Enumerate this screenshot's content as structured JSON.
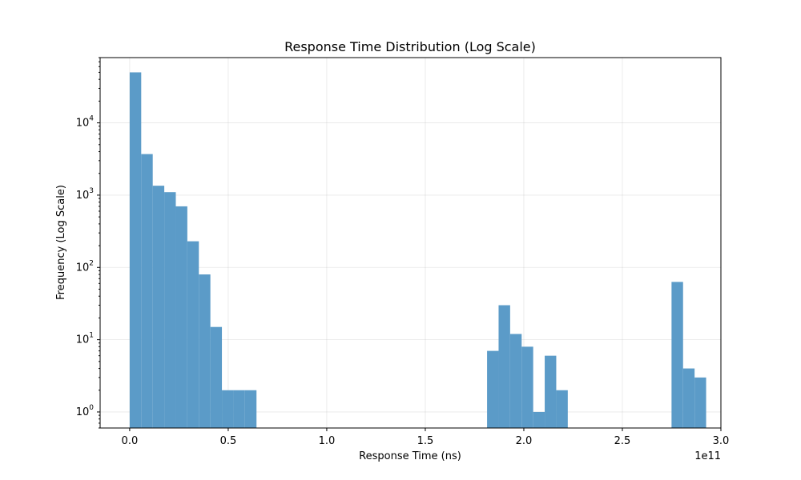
{
  "chart_data": {
    "type": "bar",
    "title": "Response Time Distribution (Log Scale)",
    "xlabel": "Response Time (ns)",
    "ylabel": "Frequency (Log Scale)",
    "x_offset_label": "1e11",
    "x_scale": 100000000000.0,
    "xlim": [
      -15000000000.0,
      300000000000.0
    ],
    "ylim": [
      0.6,
      80000
    ],
    "y_scale": "log",
    "grid": true,
    "color": "#5b9bc8",
    "x_ticks": [
      {
        "value": 0.0,
        "label": "0.0"
      },
      {
        "value": 50000000000.0,
        "label": "0.5"
      },
      {
        "value": 100000000000.0,
        "label": "1.0"
      },
      {
        "value": 150000000000.0,
        "label": "1.5"
      },
      {
        "value": 200000000000.0,
        "label": "2.0"
      },
      {
        "value": 250000000000.0,
        "label": "2.5"
      },
      {
        "value": 300000000000.0,
        "label": "3.0"
      }
    ],
    "y_ticks": [
      {
        "value": 1,
        "exp": "0"
      },
      {
        "value": 10,
        "exp": "1"
      },
      {
        "value": 100,
        "exp": "2"
      },
      {
        "value": 1000,
        "exp": "3"
      },
      {
        "value": 10000,
        "exp": "4"
      }
    ],
    "bins": [
      {
        "x0": 0.0,
        "x1": 5850000000.0,
        "count": 50000
      },
      {
        "x0": 5850000000.0,
        "x1": 11700000000.0,
        "count": 3700
      },
      {
        "x0": 11700000000.0,
        "x1": 17550000000.0,
        "count": 1350
      },
      {
        "x0": 17550000000.0,
        "x1": 23400000000.0,
        "count": 1100
      },
      {
        "x0": 23400000000.0,
        "x1": 29250000000.0,
        "count": 700
      },
      {
        "x0": 29250000000.0,
        "x1": 35100000000.0,
        "count": 230
      },
      {
        "x0": 35100000000.0,
        "x1": 40950000000.0,
        "count": 80
      },
      {
        "x0": 40950000000.0,
        "x1": 46800000000.0,
        "count": 15
      },
      {
        "x0": 46800000000.0,
        "x1": 52650000000.0,
        "count": 2
      },
      {
        "x0": 52650000000.0,
        "x1": 58500000000.0,
        "count": 2
      },
      {
        "x0": 58500000000.0,
        "x1": 64350000000.0,
        "count": 2
      },
      {
        "x0": 181350000000.0,
        "x1": 187200000000.0,
        "count": 7
      },
      {
        "x0": 187200000000.0,
        "x1": 193050000000.0,
        "count": 30
      },
      {
        "x0": 193050000000.0,
        "x1": 198900000000.0,
        "count": 12
      },
      {
        "x0": 198900000000.0,
        "x1": 204750000000.0,
        "count": 8
      },
      {
        "x0": 204750000000.0,
        "x1": 210600000000.0,
        "count": 1
      },
      {
        "x0": 210600000000.0,
        "x1": 216450000000.0,
        "count": 6
      },
      {
        "x0": 216450000000.0,
        "x1": 222300000000.0,
        "count": 2
      },
      {
        "x0": 274950000000.0,
        "x1": 280800000000.0,
        "count": 63
      },
      {
        "x0": 280800000000.0,
        "x1": 286650000000.0,
        "count": 4
      },
      {
        "x0": 286650000000.0,
        "x1": 292500000000.0,
        "count": 3
      }
    ]
  }
}
